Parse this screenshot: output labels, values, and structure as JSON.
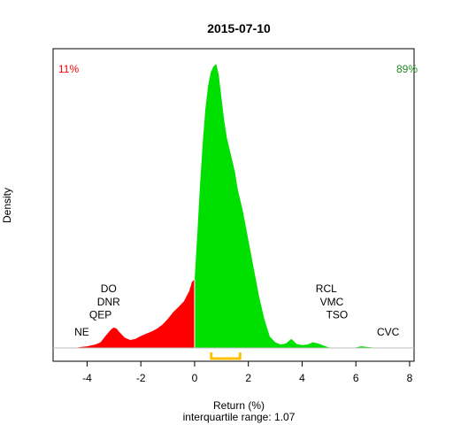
{
  "chart_data": {
    "type": "area",
    "title": "2015-07-10",
    "xlabel": "Return (%)",
    "ylabel": "Density",
    "subtitle": "interquartile range: 1.07",
    "xlim": [
      -5.2,
      8.1
    ],
    "ylim": [
      0,
      0.5
    ],
    "xticks": [
      -4,
      -2,
      0,
      2,
      4,
      6,
      8
    ],
    "xtick_labels": [
      "-4",
      "-2",
      "0",
      "2",
      "4",
      "6",
      "8"
    ],
    "grid": false,
    "legend": "none",
    "pct_negative": "11%",
    "pct_positive": "89%",
    "colors": {
      "negative": "#ff0000",
      "positive": "#00e000",
      "iqr": "#ffc000",
      "baseline": "#bebebe",
      "pct_negative": "#ff0000",
      "pct_positive": "#228b22"
    },
    "iqr": [
      0.62,
      1.69
    ],
    "density": {
      "x": [
        -4.5,
        -4.2,
        -4.0,
        -3.7,
        -3.5,
        -3.3,
        -3.1,
        -3.0,
        -2.9,
        -2.8,
        -2.6,
        -2.4,
        -2.2,
        -2.0,
        -1.8,
        -1.6,
        -1.4,
        -1.2,
        -1.0,
        -0.8,
        -0.6,
        -0.4,
        -0.2,
        -0.1,
        0.0,
        0.0,
        0.1,
        0.2,
        0.3,
        0.4,
        0.5,
        0.6,
        0.7,
        0.8,
        0.9,
        1.0,
        1.1,
        1.2,
        1.3,
        1.4,
        1.5,
        1.6,
        1.8,
        2.0,
        2.2,
        2.4,
        2.6,
        2.8,
        3.0,
        3.2,
        3.4,
        3.6,
        3.8,
        4.0,
        4.2,
        4.4,
        4.6,
        4.8,
        5.0,
        5.2,
        5.4,
        5.6,
        5.8,
        6.0,
        6.2,
        6.4,
        6.6,
        6.8,
        7.0,
        7.2,
        7.4,
        7.6,
        7.8
      ],
      "y": [
        0.0,
        0.002,
        0.003,
        0.006,
        0.01,
        0.022,
        0.033,
        0.036,
        0.034,
        0.028,
        0.018,
        0.014,
        0.016,
        0.021,
        0.025,
        0.029,
        0.034,
        0.041,
        0.051,
        0.063,
        0.072,
        0.082,
        0.1,
        0.116,
        0.121,
        0.121,
        0.2,
        0.285,
        0.36,
        0.42,
        0.46,
        0.485,
        0.495,
        0.5,
        0.48,
        0.44,
        0.4,
        0.37,
        0.35,
        0.33,
        0.31,
        0.28,
        0.24,
        0.19,
        0.14,
        0.09,
        0.05,
        0.02,
        0.01,
        0.006,
        0.008,
        0.016,
        0.007,
        0.005,
        0.006,
        0.01,
        0.008,
        0.004,
        0.001,
        0.0,
        0.0,
        0.0,
        0.0,
        0.001,
        0.003,
        0.002,
        0.001,
        0.0,
        0.0,
        0.0,
        0.0,
        0.0,
        0.0
      ]
    },
    "annotations": [
      {
        "text": "NE",
        "x": -4.2,
        "y": 0.022
      },
      {
        "text": "QEP",
        "x": -3.5,
        "y": 0.052
      },
      {
        "text": "DNR",
        "x": -3.2,
        "y": 0.075
      },
      {
        "text": "DO",
        "x": -3.2,
        "y": 0.098
      },
      {
        "text": "RCL",
        "x": 4.9,
        "y": 0.098
      },
      {
        "text": "VMC",
        "x": 5.1,
        "y": 0.075
      },
      {
        "text": "TSO",
        "x": 5.3,
        "y": 0.052
      },
      {
        "text": "CVC",
        "x": 7.2,
        "y": 0.022
      }
    ]
  }
}
